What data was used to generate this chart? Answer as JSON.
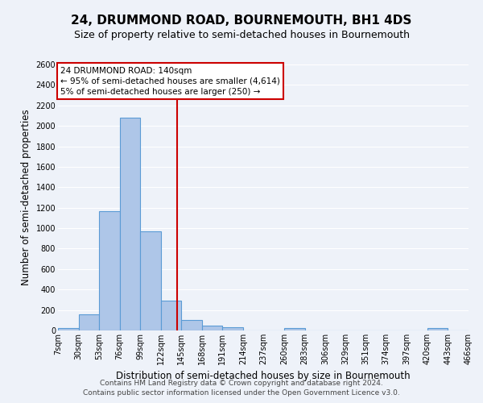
{
  "title": "24, DRUMMOND ROAD, BOURNEMOUTH, BH1 4DS",
  "subtitle": "Size of property relative to semi-detached houses in Bournemouth",
  "xlabel": "Distribution of semi-detached houses by size in Bournemouth",
  "ylabel": "Number of semi-detached properties",
  "footnote1": "Contains HM Land Registry data © Crown copyright and database right 2024.",
  "footnote2": "Contains public sector information licensed under the Open Government Licence v3.0.",
  "bin_edges": [
    7,
    30,
    53,
    76,
    99,
    122,
    145,
    168,
    191,
    214,
    237,
    260,
    283,
    306,
    329,
    351,
    374,
    397,
    420,
    443,
    466
  ],
  "bin_labels": [
    "7sqm",
    "30sqm",
    "53sqm",
    "76sqm",
    "99sqm",
    "122sqm",
    "145sqm",
    "168sqm",
    "191sqm",
    "214sqm",
    "237sqm",
    "260sqm",
    "283sqm",
    "306sqm",
    "329sqm",
    "351sqm",
    "374sqm",
    "397sqm",
    "420sqm",
    "443sqm",
    "466sqm"
  ],
  "bar_heights": [
    25,
    160,
    1170,
    2080,
    970,
    290,
    100,
    45,
    30,
    0,
    0,
    25,
    0,
    0,
    0,
    0,
    0,
    0,
    25,
    0
  ],
  "bar_color": "#aec6e8",
  "bar_edge_color": "#5b9bd5",
  "property_size": 140,
  "vline_color": "#cc0000",
  "annotation_text": "24 DRUMMOND ROAD: 140sqm\n← 95% of semi-detached houses are smaller (4,614)\n5% of semi-detached houses are larger (250) →",
  "annotation_box_color": "#ffffff",
  "annotation_box_edge": "#cc0000",
  "ylim": [
    0,
    2600
  ],
  "yticks": [
    0,
    200,
    400,
    600,
    800,
    1000,
    1200,
    1400,
    1600,
    1800,
    2000,
    2200,
    2400,
    2600
  ],
  "bg_color": "#eef2f9",
  "grid_color": "#ffffff",
  "title_fontsize": 11,
  "subtitle_fontsize": 9,
  "label_fontsize": 8.5,
  "tick_fontsize": 7,
  "footnote_fontsize": 6.5
}
